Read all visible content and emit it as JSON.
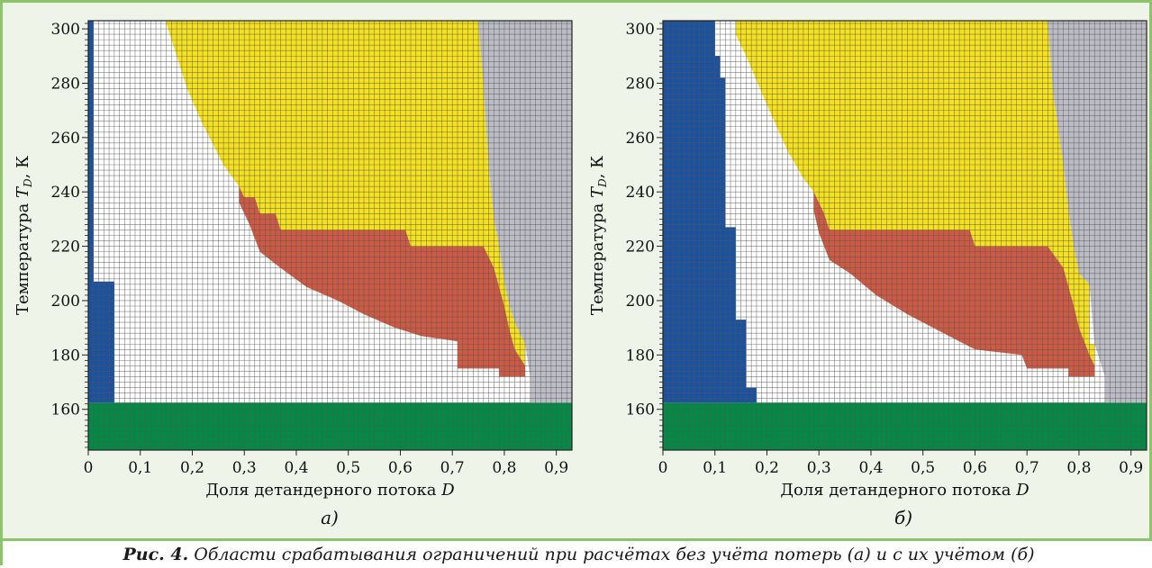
{
  "caption": {
    "prefix": "Рис. 4.",
    "text": " Области срабатывания ограничений при расчётах без учёта потерь (а) и с их учётом (б)"
  },
  "chart_data": [
    {
      "type": "heatmap",
      "panel_label": "а)",
      "xlabel": "Доля детандерного потока D",
      "ylabel": "Температура T_D, К",
      "xlim": [
        0,
        0.93
      ],
      "ylim": [
        145,
        303
      ],
      "x_ticks": [
        "0",
        "0,1",
        "0,2",
        "0,3",
        "0,4",
        "0,5",
        "0,6",
        "0,7",
        "0,8",
        "0,9"
      ],
      "y_ticks": [
        "160",
        "180",
        "200",
        "220",
        "240",
        "260",
        "280",
        "300"
      ],
      "grid": true,
      "regions": [
        {
          "color": "#008c45",
          "points": [
            [
              0,
              145
            ],
            [
              0.93,
              145
            ],
            [
              0.93,
              162.5
            ],
            [
              0,
              162.5
            ]
          ]
        },
        {
          "color": "#1a52a0",
          "points": [
            [
              0,
              162.5
            ],
            [
              0.05,
              162.5
            ],
            [
              0.05,
              207
            ],
            [
              0.01,
              207
            ],
            [
              0.01,
              303
            ],
            [
              0,
              303
            ]
          ]
        },
        {
          "color": "#f5e11e",
          "points": [
            [
              0.15,
              303
            ],
            [
              0.75,
              303
            ],
            [
              0.76,
              278
            ],
            [
              0.77,
              250
            ],
            [
              0.78,
              230
            ],
            [
              0.79,
              220
            ],
            [
              0.8,
              207
            ],
            [
              0.81,
              198
            ],
            [
              0.82,
              192
            ],
            [
              0.84,
              184
            ],
            [
              0.84,
              176
            ],
            [
              0.82,
              176
            ],
            [
              0.8,
              198
            ],
            [
              0.78,
              212
            ],
            [
              0.76,
              220
            ],
            [
              0.62,
              220
            ],
            [
              0.61,
              226
            ],
            [
              0.37,
              226
            ],
            [
              0.36,
              232
            ],
            [
              0.33,
              232
            ],
            [
              0.32,
              238
            ],
            [
              0.3,
              238
            ],
            [
              0.29,
              242
            ],
            [
              0.26,
              250
            ],
            [
              0.22,
              265
            ],
            [
              0.19,
              278
            ],
            [
              0.17,
              290
            ],
            [
              0.15,
              302
            ]
          ]
        },
        {
          "color": "#cd5a44",
          "points": [
            [
              0.29,
              242
            ],
            [
              0.3,
              238
            ],
            [
              0.32,
              238
            ],
            [
              0.33,
              232
            ],
            [
              0.36,
              232
            ],
            [
              0.37,
              226
            ],
            [
              0.61,
              226
            ],
            [
              0.62,
              220
            ],
            [
              0.76,
              220
            ],
            [
              0.78,
              212
            ],
            [
              0.8,
              198
            ],
            [
              0.81,
              189
            ],
            [
              0.82,
              182
            ],
            [
              0.84,
              176
            ],
            [
              0.84,
              172
            ],
            [
              0.79,
              172
            ],
            [
              0.79,
              175
            ],
            [
              0.71,
              175
            ],
            [
              0.71,
              185
            ],
            [
              0.64,
              187
            ],
            [
              0.59,
              190
            ],
            [
              0.53,
              195
            ],
            [
              0.48,
              200
            ],
            [
              0.42,
              205
            ],
            [
              0.37,
              212
            ],
            [
              0.33,
              218
            ],
            [
              0.31,
              228
            ],
            [
              0.29,
              236
            ]
          ]
        },
        {
          "color": "#bcbcc6",
          "points": [
            [
              0.75,
              303
            ],
            [
              0.93,
              303
            ],
            [
              0.93,
              162.5
            ],
            [
              0.85,
              162.5
            ],
            [
              0.85,
              172
            ],
            [
              0.84,
              184
            ],
            [
              0.82,
              192
            ],
            [
              0.81,
              198
            ],
            [
              0.8,
              207
            ],
            [
              0.79,
              220
            ],
            [
              0.78,
              230
            ],
            [
              0.77,
              250
            ],
            [
              0.76,
              278
            ]
          ]
        }
      ]
    },
    {
      "type": "heatmap",
      "panel_label": "б)",
      "xlabel": "Доля детандерного потока D",
      "ylabel": "Температура T_D, К",
      "xlim": [
        0,
        0.93
      ],
      "ylim": [
        145,
        303
      ],
      "x_ticks": [
        "0",
        "0,1",
        "0,2",
        "0,3",
        "0,4",
        "0,5",
        "0,6",
        "0,7",
        "0,8",
        "0,9"
      ],
      "y_ticks": [
        "160",
        "180",
        "200",
        "220",
        "240",
        "260",
        "280",
        "300"
      ],
      "grid": true,
      "regions": [
        {
          "color": "#008c45",
          "points": [
            [
              0,
              145
            ],
            [
              0.93,
              145
            ],
            [
              0.93,
              162.5
            ],
            [
              0,
              162.5
            ]
          ]
        },
        {
          "color": "#1a52a0",
          "points": [
            [
              0,
              162.5
            ],
            [
              0.18,
              162.5
            ],
            [
              0.18,
              168
            ],
            [
              0.16,
              168
            ],
            [
              0.16,
              193
            ],
            [
              0.14,
              193
            ],
            [
              0.14,
              227
            ],
            [
              0.12,
              227
            ],
            [
              0.12,
              282
            ],
            [
              0.11,
              282
            ],
            [
              0.11,
              290
            ],
            [
              0.1,
              290
            ],
            [
              0.1,
              303
            ],
            [
              0,
              303
            ]
          ]
        },
        {
          "color": "#f5e11e",
          "points": [
            [
              0.14,
              303
            ],
            [
              0.74,
              303
            ],
            [
              0.75,
              277
            ],
            [
              0.77,
              250
            ],
            [
              0.78,
              233
            ],
            [
              0.79,
              220
            ],
            [
              0.8,
              210
            ],
            [
              0.82,
              206
            ],
            [
              0.82,
              184
            ],
            [
              0.83,
              184
            ],
            [
              0.83,
              176
            ],
            [
              0.8,
              176
            ],
            [
              0.79,
              198
            ],
            [
              0.77,
              212
            ],
            [
              0.74,
              220
            ],
            [
              0.6,
              220
            ],
            [
              0.59,
              226
            ],
            [
              0.32,
              226
            ],
            [
              0.31,
              232
            ],
            [
              0.29,
              240
            ],
            [
              0.27,
              245
            ],
            [
              0.24,
              255
            ],
            [
              0.2,
              272
            ],
            [
              0.16,
              290
            ],
            [
              0.14,
              298
            ]
          ]
        },
        {
          "color": "#cd5a44",
          "points": [
            [
              0.29,
              240
            ],
            [
              0.31,
              232
            ],
            [
              0.32,
              226
            ],
            [
              0.59,
              226
            ],
            [
              0.6,
              220
            ],
            [
              0.74,
              220
            ],
            [
              0.77,
              212
            ],
            [
              0.79,
              198
            ],
            [
              0.8,
              190
            ],
            [
              0.82,
              180
            ],
            [
              0.83,
              176
            ],
            [
              0.83,
              172
            ],
            [
              0.78,
              172
            ],
            [
              0.78,
              175
            ],
            [
              0.7,
              175
            ],
            [
              0.69,
              180
            ],
            [
              0.6,
              182
            ],
            [
              0.54,
              188
            ],
            [
              0.47,
              195
            ],
            [
              0.41,
              202
            ],
            [
              0.36,
              210
            ],
            [
              0.32,
              215
            ],
            [
              0.3,
              225
            ],
            [
              0.29,
              233
            ]
          ]
        },
        {
          "color": "#bcbcc6",
          "points": [
            [
              0.74,
              303
            ],
            [
              0.93,
              303
            ],
            [
              0.93,
              162.5
            ],
            [
              0.85,
              162.5
            ],
            [
              0.85,
              172
            ],
            [
              0.83,
              184
            ],
            [
              0.82,
              206
            ],
            [
              0.8,
              210
            ],
            [
              0.79,
              220
            ],
            [
              0.78,
              233
            ],
            [
              0.77,
              250
            ],
            [
              0.75,
              277
            ]
          ]
        }
      ]
    }
  ]
}
